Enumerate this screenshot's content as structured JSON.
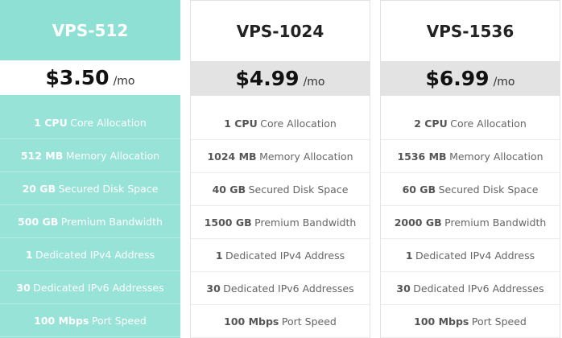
{
  "plans": [
    {
      "name": "VPS-512",
      "price": "$3.50",
      "period": "/mo",
      "featured": true,
      "features": [
        [
          "1 CPU",
          "Core Allocation"
        ],
        [
          "512 MB",
          "Memory Allocation"
        ],
        [
          "20 GB",
          "Secured Disk Space"
        ],
        [
          "500 GB",
          "Premium Bandwidth"
        ],
        [
          "1",
          "Dedicated IPv4 Address"
        ],
        [
          "30",
          "Dedicated IPv6 Addresses"
        ],
        [
          "100 Mbps",
          "Port Speed"
        ]
      ]
    },
    {
      "name": "VPS-1024",
      "price": "$4.99",
      "period": "/mo",
      "featured": false,
      "features": [
        [
          "1 CPU",
          "Core Allocation"
        ],
        [
          "1024 MB",
          "Memory Allocation"
        ],
        [
          "40 GB",
          "Secured Disk Space"
        ],
        [
          "1500 GB",
          "Premium Bandwidth"
        ],
        [
          "1",
          "Dedicated IPv4 Address"
        ],
        [
          "30",
          "Dedicated IPv6 Addresses"
        ],
        [
          "100 Mbps",
          "Port Speed"
        ]
      ]
    },
    {
      "name": "VPS-1536",
      "price": "$6.99",
      "period": "/mo",
      "featured": false,
      "features": [
        [
          "2 CPU",
          "Core Allocation"
        ],
        [
          "1536 MB",
          "Memory Allocation"
        ],
        [
          "60 GB",
          "Secured Disk Space"
        ],
        [
          "2000 GB",
          "Premium Bandwidth"
        ],
        [
          "1",
          "Dedicated IPv4 Address"
        ],
        [
          "30",
          "Dedicated IPv6 Addresses"
        ],
        [
          "100 Mbps",
          "Port Speed"
        ]
      ]
    }
  ]
}
